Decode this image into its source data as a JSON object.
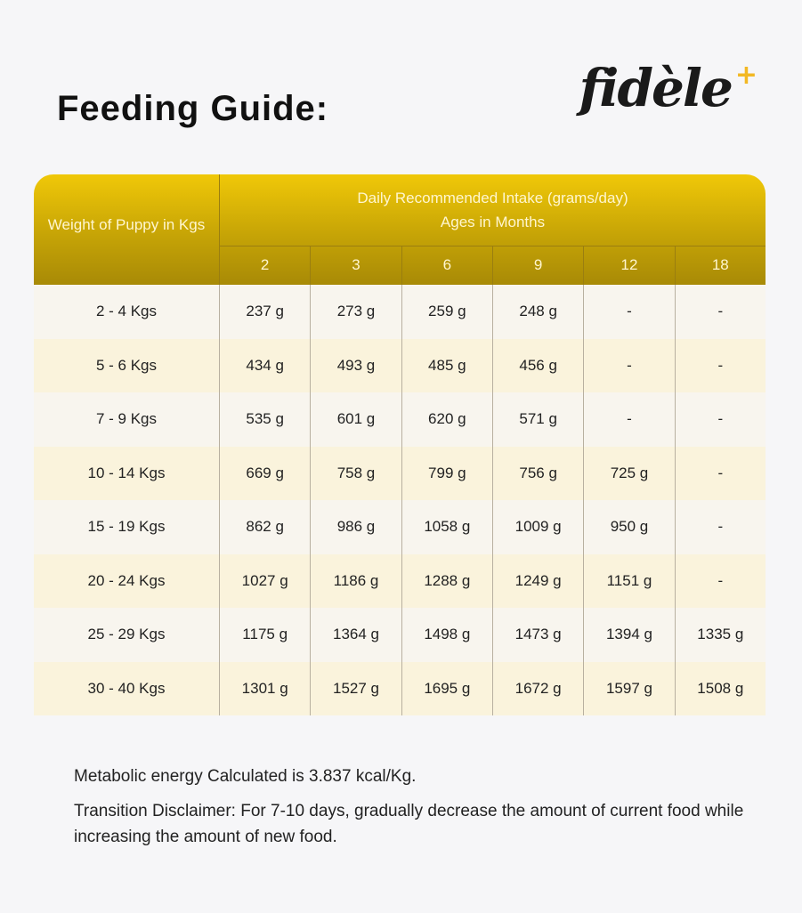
{
  "title": "Feeding Guide:",
  "logo": {
    "text": "fidèle",
    "mark": "+",
    "accent": "#f2b824"
  },
  "table": {
    "weight_header": "Weight of Puppy in Kgs",
    "intake_header": "Daily Recommended Intake (grams/day)",
    "ages_header": "Ages in Months",
    "ages": [
      "2",
      "3",
      "6",
      "9",
      "12",
      "18"
    ],
    "rows": [
      {
        "weight": "2 - 4 Kgs",
        "values": [
          "237 g",
          "273 g",
          "259 g",
          "248 g",
          "-",
          "-"
        ]
      },
      {
        "weight": "5 - 6 Kgs",
        "values": [
          "434 g",
          "493 g",
          "485 g",
          "456 g",
          "-",
          "-"
        ]
      },
      {
        "weight": "7 - 9 Kgs",
        "values": [
          "535 g",
          "601 g",
          "620 g",
          "571 g",
          "-",
          "-"
        ]
      },
      {
        "weight": "10 - 14 Kgs",
        "values": [
          "669 g",
          "758 g",
          "799 g",
          "756 g",
          "725 g",
          "-"
        ]
      },
      {
        "weight": "15 - 19 Kgs",
        "values": [
          "862 g",
          "986 g",
          "1058 g",
          "1009 g",
          "950 g",
          "-"
        ]
      },
      {
        "weight": "20 - 24 Kgs",
        "values": [
          "1027 g",
          "1186 g",
          "1288 g",
          "1249 g",
          "1151 g",
          "-"
        ]
      },
      {
        "weight": "25 - 29 Kgs",
        "values": [
          "1175 g",
          "1364 g",
          "1498 g",
          "1473 g",
          "1394 g",
          "1335 g"
        ]
      },
      {
        "weight": "30 - 40 Kgs",
        "values": [
          "1301 g",
          "1527 g",
          "1695 g",
          "1672 g",
          "1597 g",
          "1508 g"
        ]
      }
    ]
  },
  "notes": [
    "Metabolic energy Calculated is 3.837 kcal/Kg.",
    "Transition Disclaimer: For 7-10 days, gradually decrease the amount of current food while increasing the amount of new food."
  ]
}
